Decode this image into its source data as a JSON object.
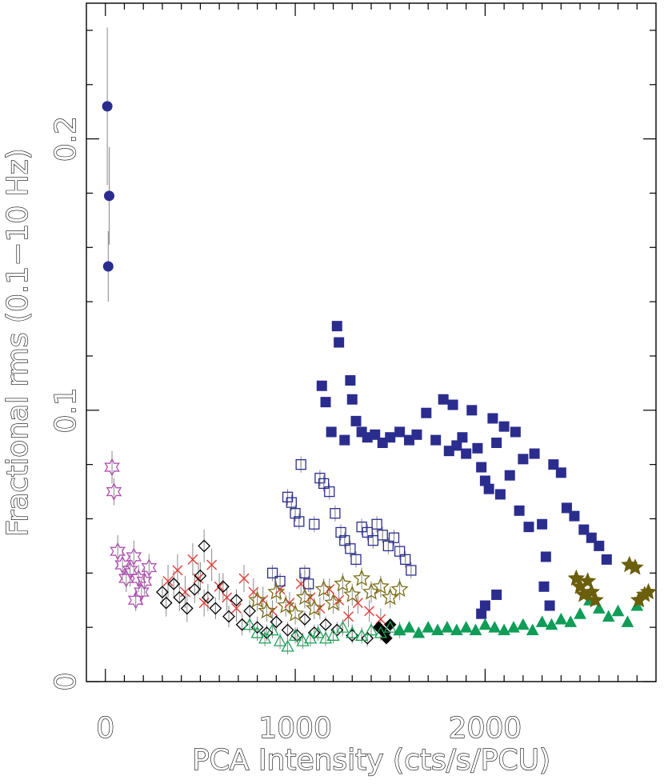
{
  "chart_data": {
    "type": "scatter",
    "title": "",
    "xlabel": "PCA Intensity (cts/s/PCU)",
    "ylabel": "Fractional rms (0.1−10 Hz)",
    "xlim": [
      -100,
      2900
    ],
    "ylim": [
      0,
      0.25
    ],
    "x_ticks": [
      0,
      1000,
      2000
    ],
    "x_tick_labels": [
      "0",
      "1000",
      "2000"
    ],
    "y_ticks": [
      0,
      0.1,
      0.2
    ],
    "y_tick_labels": [
      "0",
      "0.1",
      "0.2"
    ],
    "grid": false,
    "legend": "none",
    "series": [
      {
        "marker": "filled-circle",
        "color": "#2b2d8e",
        "error_color": "#888888",
        "points": [
          [
            10,
            0.212,
            0.029
          ],
          [
            20,
            0.179,
            0.018
          ],
          [
            15,
            0.153,
            0.013
          ]
        ]
      },
      {
        "marker": "star6-open",
        "color": "#b24fb4",
        "error_color": "#888888",
        "points": [
          [
            35,
            0.079,
            0.006
          ],
          [
            45,
            0.07,
            0.005
          ],
          [
            65,
            0.048,
            0.006
          ],
          [
            90,
            0.043,
            0.006
          ],
          [
            110,
            0.038,
            0.005
          ],
          [
            130,
            0.041,
            0.006
          ],
          [
            150,
            0.046,
            0.006
          ],
          [
            160,
            0.03,
            0.004
          ],
          [
            175,
            0.038,
            0.005
          ],
          [
            190,
            0.033,
            0.005
          ],
          [
            205,
            0.037,
            0.005
          ],
          [
            230,
            0.042,
            0.005
          ]
        ]
      },
      {
        "marker": "x",
        "color": "#e53935",
        "error_color": "#888888",
        "points": [
          [
            330,
            0.037,
            0.006
          ],
          [
            380,
            0.041,
            0.006
          ],
          [
            420,
            0.033,
            0.006
          ],
          [
            460,
            0.045,
            0.006
          ],
          [
            490,
            0.038,
            0.006
          ],
          [
            520,
            0.029,
            0.005
          ],
          [
            560,
            0.043,
            0.006
          ],
          [
            600,
            0.035,
            0.005
          ],
          [
            640,
            0.031,
            0.005
          ],
          [
            690,
            0.027,
            0.005
          ],
          [
            730,
            0.038,
            0.005
          ],
          [
            780,
            0.033,
            0.005
          ],
          [
            830,
            0.03,
            0.005
          ],
          [
            880,
            0.026,
            0.004
          ],
          [
            920,
            0.034,
            0.004
          ],
          [
            970,
            0.029,
            0.004
          ],
          [
            1030,
            0.036,
            0.004
          ],
          [
            1080,
            0.031,
            0.004
          ],
          [
            1130,
            0.027,
            0.004
          ],
          [
            1180,
            0.034,
            0.004
          ],
          [
            1230,
            0.03,
            0.004
          ],
          [
            1280,
            0.024,
            0.004
          ],
          [
            1330,
            0.029,
            0.004
          ],
          [
            1390,
            0.026,
            0.004
          ],
          [
            1450,
            0.023,
            0.004
          ]
        ]
      },
      {
        "marker": "diamond-open",
        "color": "#000000",
        "error_color": "#888888",
        "points": [
          [
            300,
            0.033,
            0.005
          ],
          [
            320,
            0.029,
            0.005
          ],
          [
            360,
            0.036,
            0.005
          ],
          [
            390,
            0.031,
            0.005
          ],
          [
            430,
            0.027,
            0.005
          ],
          [
            470,
            0.034,
            0.005
          ],
          [
            500,
            0.039,
            0.005
          ],
          [
            520,
            0.05,
            0.006
          ],
          [
            540,
            0.031,
            0.005
          ],
          [
            580,
            0.027,
            0.004
          ],
          [
            620,
            0.035,
            0.005
          ],
          [
            650,
            0.024,
            0.004
          ],
          [
            690,
            0.03,
            0.004
          ],
          [
            720,
            0.021,
            0.004
          ],
          [
            760,
            0.026,
            0.004
          ],
          [
            800,
            0.02,
            0.004
          ],
          [
            850,
            0.018,
            0.003
          ],
          [
            900,
            0.022,
            0.003
          ],
          [
            960,
            0.019,
            0.003
          ],
          [
            1010,
            0.017,
            0.003
          ],
          [
            1050,
            0.023,
            0.003
          ],
          [
            1100,
            0.018,
            0.003
          ],
          [
            1160,
            0.021,
            0.003
          ],
          [
            1220,
            0.019,
            0.003
          ],
          [
            1300,
            0.017,
            0.003
          ],
          [
            1380,
            0.016,
            0.003
          ]
        ]
      },
      {
        "marker": "diamond-filled",
        "color": "#000000",
        "error_color": "#888888",
        "points": [
          [
            1440,
            0.02,
            0.002
          ],
          [
            1470,
            0.018,
            0.002
          ],
          [
            1480,
            0.016,
            0.002
          ],
          [
            1500,
            0.021,
            0.002
          ]
        ]
      },
      {
        "marker": "square-open",
        "color": "#2b2d8e",
        "error_color": "#888888",
        "points": [
          [
            880,
            0.04,
            0.003
          ],
          [
            920,
            0.037,
            0.003
          ],
          [
            960,
            0.068,
            0.003
          ],
          [
            980,
            0.066,
            0.003
          ],
          [
            1000,
            0.062,
            0.003
          ],
          [
            1020,
            0.059,
            0.003
          ],
          [
            1030,
            0.08,
            0.003
          ],
          [
            1050,
            0.04,
            0.003
          ],
          [
            1070,
            0.036,
            0.003
          ],
          [
            1100,
            0.058,
            0.003
          ],
          [
            1130,
            0.075,
            0.003
          ],
          [
            1150,
            0.073,
            0.003
          ],
          [
            1180,
            0.07,
            0.003
          ],
          [
            1210,
            0.062,
            0.003
          ],
          [
            1240,
            0.055,
            0.003
          ],
          [
            1260,
            0.052,
            0.003
          ],
          [
            1290,
            0.049,
            0.003
          ],
          [
            1320,
            0.045,
            0.003
          ],
          [
            1350,
            0.057,
            0.003
          ],
          [
            1380,
            0.055,
            0.003
          ],
          [
            1410,
            0.052,
            0.003
          ],
          [
            1430,
            0.058,
            0.003
          ],
          [
            1460,
            0.054,
            0.003
          ],
          [
            1490,
            0.05,
            0.003
          ],
          [
            1520,
            0.053,
            0.003
          ],
          [
            1550,
            0.048,
            0.003
          ],
          [
            1580,
            0.045,
            0.003
          ],
          [
            1610,
            0.041,
            0.003
          ]
        ]
      },
      {
        "marker": "square-filled",
        "color": "#2b2d8e",
        "error_color": "#888888",
        "points": [
          [
            1140,
            0.109,
            0.001
          ],
          [
            1160,
            0.103,
            0.001
          ],
          [
            1190,
            0.092,
            0.001
          ],
          [
            1220,
            0.131,
            0.001
          ],
          [
            1230,
            0.125,
            0.001
          ],
          [
            1260,
            0.089,
            0.001
          ],
          [
            1290,
            0.111,
            0.001
          ],
          [
            1300,
            0.104,
            0.001
          ],
          [
            1320,
            0.096,
            0.001
          ],
          [
            1350,
            0.092,
            0.001
          ],
          [
            1380,
            0.09,
            0.001
          ],
          [
            1420,
            0.091,
            0.001
          ],
          [
            1460,
            0.088,
            0.001
          ],
          [
            1500,
            0.09,
            0.001
          ],
          [
            1550,
            0.092,
            0.001
          ],
          [
            1600,
            0.089,
            0.001
          ],
          [
            1640,
            0.091,
            0.001
          ],
          [
            1690,
            0.099,
            0.001
          ],
          [
            1740,
            0.089,
            0.001
          ],
          [
            1780,
            0.104,
            0.001
          ],
          [
            1810,
            0.085,
            0.001
          ],
          [
            1830,
            0.102,
            0.001
          ],
          [
            1850,
            0.087,
            0.001
          ],
          [
            1880,
            0.09,
            0.001
          ],
          [
            1900,
            0.084,
            0.001
          ],
          [
            1930,
            0.1,
            0.001
          ],
          [
            1960,
            0.086,
            0.001
          ],
          [
            1980,
            0.079,
            0.001
          ],
          [
            2000,
            0.074,
            0.001
          ],
          [
            2020,
            0.071,
            0.001
          ],
          [
            2040,
            0.097,
            0.001
          ],
          [
            2060,
            0.088,
            0.001
          ],
          [
            2080,
            0.069,
            0.001
          ],
          [
            2100,
            0.094,
            0.001
          ],
          [
            2130,
            0.076,
            0.001
          ],
          [
            2160,
            0.092,
            0.001
          ],
          [
            2180,
            0.063,
            0.001
          ],
          [
            2200,
            0.082,
            0.001
          ],
          [
            2230,
            0.057,
            0.001
          ],
          [
            2260,
            0.084,
            0.001
          ],
          [
            2300,
            0.058,
            0.001
          ],
          [
            2320,
            0.046,
            0.001
          ],
          [
            2360,
            0.08,
            0.001
          ],
          [
            2400,
            0.077,
            0.001
          ],
          [
            2430,
            0.064,
            0.001
          ],
          [
            2470,
            0.061,
            0.001
          ],
          [
            2520,
            0.056,
            0.001
          ],
          [
            2560,
            0.053,
            0.001
          ],
          [
            2600,
            0.05,
            0.001
          ],
          [
            2640,
            0.045,
            0.001
          ],
          [
            2340,
            0.028,
            0.001
          ],
          [
            2310,
            0.035,
            0.001
          ],
          [
            2060,
            0.032,
            0.001
          ],
          [
            2000,
            0.028,
            0.001
          ],
          [
            1980,
            0.025,
            0.001
          ]
        ]
      },
      {
        "marker": "triangle-open",
        "color": "#1ea35a",
        "error_color": "#888888",
        "points": [
          [
            760,
            0.021,
            0.003
          ],
          [
            800,
            0.018,
            0.003
          ],
          [
            840,
            0.016,
            0.003
          ],
          [
            880,
            0.019,
            0.003
          ],
          [
            920,
            0.015,
            0.003
          ],
          [
            960,
            0.013,
            0.003
          ],
          [
            1000,
            0.017,
            0.003
          ],
          [
            1040,
            0.015,
            0.003
          ],
          [
            1080,
            0.016,
            0.003
          ],
          [
            1120,
            0.018,
            0.003
          ],
          [
            1160,
            0.016,
            0.003
          ],
          [
            1200,
            0.017,
            0.003
          ],
          [
            1250,
            0.02,
            0.003
          ],
          [
            1300,
            0.018,
            0.003
          ],
          [
            1350,
            0.017,
            0.003
          ],
          [
            1400,
            0.019,
            0.003
          ],
          [
            1450,
            0.018,
            0.003
          ],
          [
            1500,
            0.02,
            0.003
          ],
          [
            1550,
            0.019,
            0.003
          ]
        ]
      },
      {
        "marker": "triangle-filled",
        "color": "#0f9d58",
        "error_color": "#888888",
        "points": [
          [
            1550,
            0.019,
            0.001
          ],
          [
            1600,
            0.02,
            0.001
          ],
          [
            1650,
            0.018,
            0.001
          ],
          [
            1700,
            0.02,
            0.001
          ],
          [
            1750,
            0.019,
            0.001
          ],
          [
            1800,
            0.02,
            0.001
          ],
          [
            1850,
            0.019,
            0.001
          ],
          [
            1900,
            0.02,
            0.001
          ],
          [
            1950,
            0.019,
            0.001
          ],
          [
            2000,
            0.021,
            0.001
          ],
          [
            2050,
            0.02,
            0.001
          ],
          [
            2100,
            0.019,
            0.001
          ],
          [
            2150,
            0.02,
            0.001
          ],
          [
            2200,
            0.021,
            0.001
          ],
          [
            2250,
            0.019,
            0.001
          ],
          [
            2300,
            0.022,
            0.001
          ],
          [
            2350,
            0.021,
            0.001
          ],
          [
            2400,
            0.023,
            0.001
          ],
          [
            2450,
            0.022,
            0.001
          ],
          [
            2500,
            0.025,
            0.001
          ],
          [
            2550,
            0.03,
            0.001
          ],
          [
            2600,
            0.027,
            0.001
          ],
          [
            2650,
            0.024,
            0.001
          ],
          [
            2700,
            0.026,
            0.001
          ],
          [
            2750,
            0.022,
            0.001
          ],
          [
            2800,
            0.028,
            0.001
          ]
        ]
      },
      {
        "marker": "star5-open",
        "color": "#7a6e13",
        "error_color": "#888888",
        "points": [
          [
            800,
            0.03,
            0.004
          ],
          [
            850,
            0.026,
            0.004
          ],
          [
            900,
            0.033,
            0.004
          ],
          [
            950,
            0.028,
            0.004
          ],
          [
            1000,
            0.025,
            0.004
          ],
          [
            1050,
            0.031,
            0.004
          ],
          [
            1100,
            0.027,
            0.004
          ],
          [
            1150,
            0.034,
            0.004
          ],
          [
            1200,
            0.029,
            0.004
          ],
          [
            1250,
            0.036,
            0.004
          ],
          [
            1300,
            0.032,
            0.004
          ],
          [
            1350,
            0.038,
            0.004
          ],
          [
            1400,
            0.033,
            0.004
          ],
          [
            1450,
            0.035,
            0.004
          ],
          [
            1500,
            0.031,
            0.004
          ],
          [
            1550,
            0.034,
            0.004
          ]
        ]
      },
      {
        "marker": "star5-filled",
        "color": "#6b5e0d",
        "error_color": "#888888",
        "points": [
          [
            2480,
            0.038,
            0.001
          ],
          [
            2500,
            0.035,
            0.001
          ],
          [
            2520,
            0.032,
            0.001
          ],
          [
            2540,
            0.037,
            0.001
          ],
          [
            2560,
            0.033,
            0.001
          ],
          [
            2580,
            0.03,
            0.001
          ],
          [
            2760,
            0.043,
            0.001
          ],
          [
            2790,
            0.042,
            0.001
          ],
          [
            2810,
            0.03,
            0.001
          ],
          [
            2840,
            0.032,
            0.001
          ],
          [
            2860,
            0.033,
            0.001
          ]
        ]
      }
    ]
  }
}
